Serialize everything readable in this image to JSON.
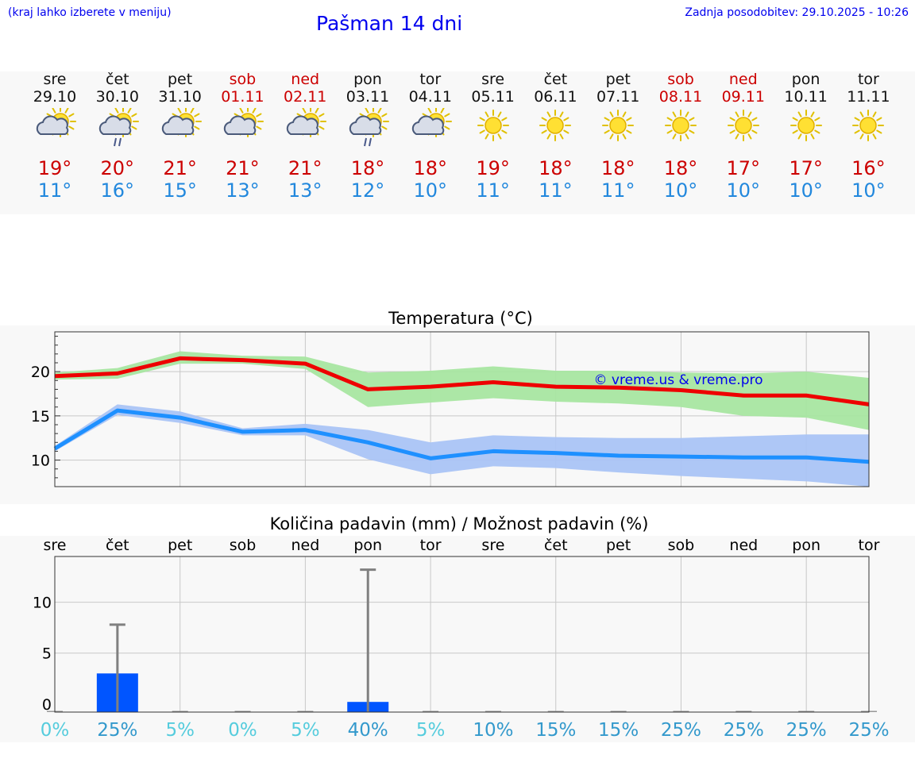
{
  "header": {
    "hint": "(kraj lahko izberete v meniju)",
    "title": "Pašman 14 dni",
    "updated": "Zadnja posodobitev: 29.10.2025 - 10:26"
  },
  "forecast": [
    {
      "day": "sre",
      "date": "29.10",
      "weekend": false,
      "icon": "partly-cloudy-icon",
      "max": "19°",
      "min": "11°"
    },
    {
      "day": "čet",
      "date": "30.10",
      "weekend": false,
      "icon": "partly-cloudy-rain-icon",
      "max": "20°",
      "min": "16°"
    },
    {
      "day": "pet",
      "date": "31.10",
      "weekend": false,
      "icon": "partly-cloudy-icon",
      "max": "21°",
      "min": "15°"
    },
    {
      "day": "sob",
      "date": "01.11",
      "weekend": true,
      "icon": "partly-cloudy-icon",
      "max": "21°",
      "min": "13°"
    },
    {
      "day": "ned",
      "date": "02.11",
      "weekend": true,
      "icon": "partly-cloudy-icon",
      "max": "21°",
      "min": "13°"
    },
    {
      "day": "pon",
      "date": "03.11",
      "weekend": false,
      "icon": "partly-cloudy-rain-icon",
      "max": "18°",
      "min": "12°"
    },
    {
      "day": "tor",
      "date": "04.11",
      "weekend": false,
      "icon": "partly-cloudy-icon",
      "max": "18°",
      "min": "10°"
    },
    {
      "day": "sre",
      "date": "05.11",
      "weekend": false,
      "icon": "sun-icon",
      "max": "19°",
      "min": "11°"
    },
    {
      "day": "čet",
      "date": "06.11",
      "weekend": false,
      "icon": "sun-icon",
      "max": "18°",
      "min": "11°"
    },
    {
      "day": "pet",
      "date": "07.11",
      "weekend": false,
      "icon": "sun-icon",
      "max": "18°",
      "min": "11°"
    },
    {
      "day": "sob",
      "date": "08.11",
      "weekend": true,
      "icon": "sun-icon",
      "max": "18°",
      "min": "10°"
    },
    {
      "day": "ned",
      "date": "09.11",
      "weekend": true,
      "icon": "sun-icon",
      "max": "17°",
      "min": "10°"
    },
    {
      "day": "pon",
      "date": "10.11",
      "weekend": false,
      "icon": "sun-icon",
      "max": "17°",
      "min": "10°"
    },
    {
      "day": "tor",
      "date": "11.11",
      "weekend": false,
      "icon": "sun-icon",
      "max": "16°",
      "min": "10°"
    }
  ],
  "colors": {
    "max_line": "#ee0000",
    "max_band": "#a8e6a1",
    "min_line": "#1e90ff",
    "min_band": "#aac4f5",
    "bar": "#0055ff",
    "whisker": "#808080",
    "watermark": "#0000ee",
    "pct_low": "#55ccdd",
    "pct_high": "#3399cc"
  },
  "chart_data": [
    {
      "type": "line",
      "title": "Temperatura (°C)",
      "watermark": "© vreme.us & vreme.pro",
      "x": [
        0,
        1,
        2,
        3,
        4,
        5,
        6,
        7,
        8,
        9,
        10,
        11,
        12,
        13
      ],
      "ylim": [
        7,
        24.5
      ],
      "yticks": [
        10,
        15,
        20
      ],
      "grid": true,
      "series": [
        {
          "name": "max",
          "values": [
            19.5,
            19.8,
            21.5,
            21.3,
            20.9,
            18.0,
            18.3,
            18.8,
            18.3,
            18.2,
            17.9,
            17.3,
            17.3,
            16.3
          ],
          "band_low": [
            19.1,
            19.2,
            20.9,
            20.9,
            20.3,
            16.0,
            16.5,
            17.0,
            16.6,
            16.4,
            16.0,
            15.0,
            14.8,
            13.4
          ],
          "band_high": [
            19.9,
            20.4,
            22.3,
            21.8,
            21.7,
            19.9,
            20.1,
            20.6,
            20.1,
            20.1,
            19.9,
            19.8,
            20.0,
            19.3
          ]
        },
        {
          "name": "min",
          "values": [
            11.3,
            15.6,
            14.8,
            13.2,
            13.4,
            12.0,
            10.2,
            11.0,
            10.8,
            10.5,
            10.4,
            10.3,
            10.3,
            9.8
          ],
          "band_low": [
            11.0,
            15.1,
            14.2,
            12.8,
            12.8,
            10.1,
            8.4,
            9.3,
            9.1,
            8.6,
            8.2,
            7.9,
            7.6,
            7.0
          ],
          "band_high": [
            11.6,
            16.3,
            15.5,
            13.6,
            14.1,
            13.4,
            12.0,
            12.8,
            12.6,
            12.5,
            12.5,
            12.7,
            12.9,
            12.9
          ]
        }
      ]
    },
    {
      "type": "bar",
      "title": "Količina padavin (mm) / Možnost padavin (%)",
      "categories": [
        "sre",
        "čet",
        "pet",
        "sob",
        "ned",
        "pon",
        "tor",
        "sre",
        "čet",
        "pet",
        "sob",
        "ned",
        "pon",
        "tor"
      ],
      "values": [
        0,
        3.0,
        0,
        0,
        0,
        0.2,
        0,
        0,
        0,
        0,
        0,
        0,
        0,
        0
      ],
      "whisker_max": [
        0,
        7.8,
        0,
        0,
        0,
        13.2,
        0,
        0,
        0,
        0,
        0,
        0,
        0,
        0
      ],
      "probabilities": [
        "0%",
        "25%",
        "5%",
        "0%",
        "5%",
        "40%",
        "5%",
        "10%",
        "15%",
        "15%",
        "25%",
        "25%",
        "25%",
        "25%"
      ],
      "prob_values": [
        0,
        25,
        5,
        0,
        5,
        40,
        5,
        10,
        15,
        15,
        25,
        25,
        25,
        25
      ],
      "ylim": [
        -0.8,
        14.5
      ],
      "yticks": [
        0,
        5,
        10
      ],
      "grid": true
    }
  ]
}
